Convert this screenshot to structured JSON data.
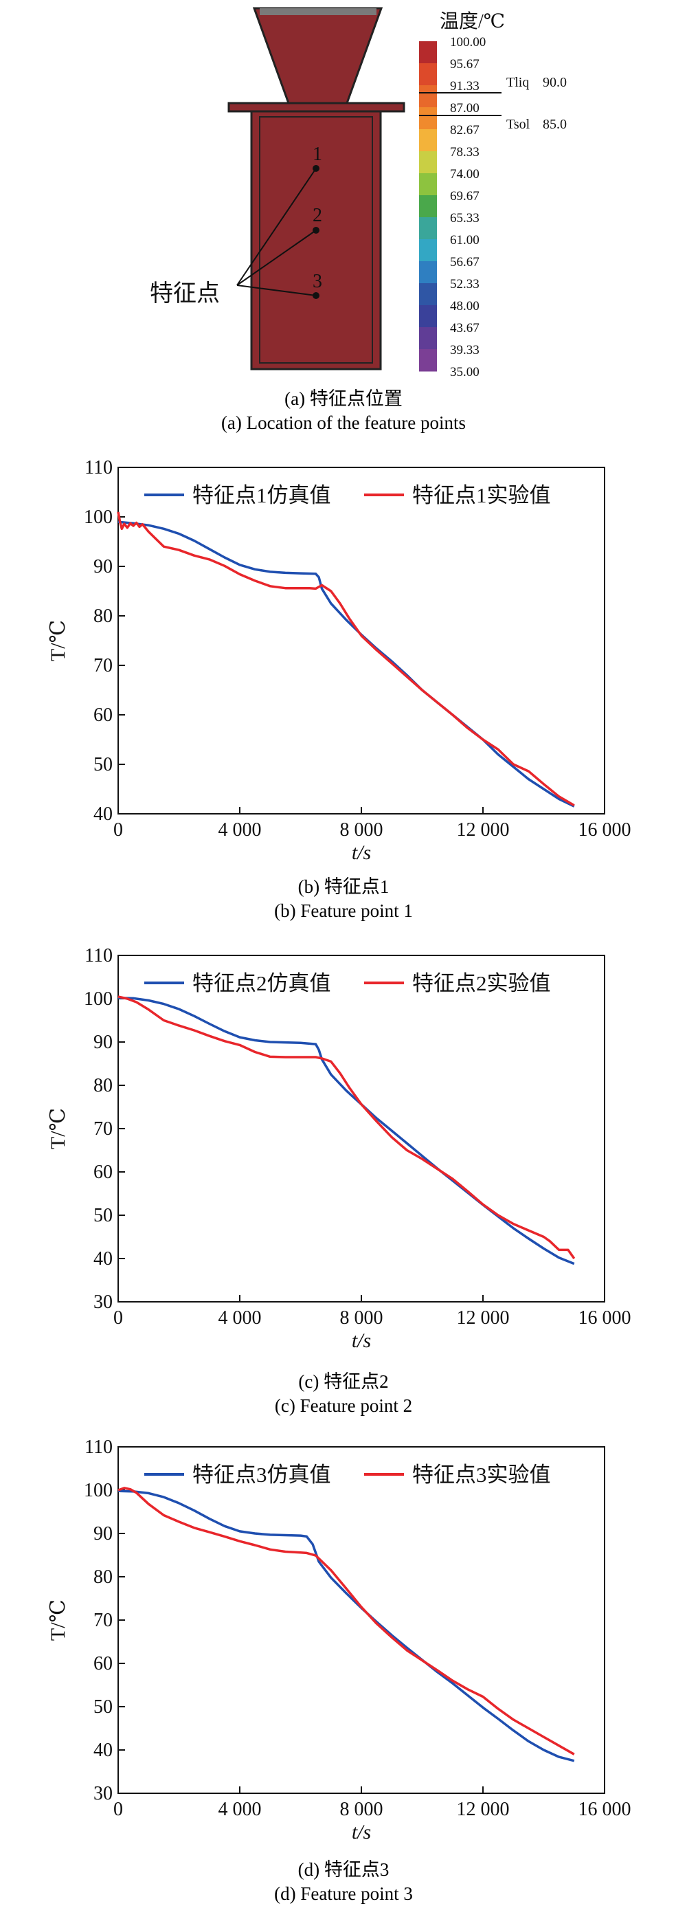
{
  "fig_a": {
    "colorbar_title": "温度/℃",
    "colorbar_ticks": [
      "100.00",
      "95.67",
      "91.33",
      "87.00",
      "82.67",
      "78.33",
      "74.00",
      "69.67",
      "65.33",
      "61.00",
      "56.67",
      "52.33",
      "48.00",
      "43.67",
      "39.33",
      "35.00"
    ],
    "colorbar_colors": [
      "#b52a2c",
      "#dd4a2a",
      "#e8692b",
      "#f08a2d",
      "#f3b33a",
      "#c9cf44",
      "#8dc33f",
      "#4aa84b",
      "#3aa69a",
      "#33a7c4",
      "#2f7fc1",
      "#2f56a5",
      "#3a419a",
      "#603d96",
      "#7b3f95"
    ],
    "tliq_label": "Tliq",
    "tliq_value": "90.0",
    "tsol_label": "Tsol",
    "tsol_value": "85.0",
    "feature_label": "特征点",
    "point_labels": [
      "1",
      "2",
      "3"
    ],
    "casting_color": "#8b2a2e",
    "caption_cn": "(a) 特征点位置",
    "caption_en": "(a) Location of the feature points"
  },
  "panels": [
    {
      "caption_cn": "(b) 特征点1",
      "caption_en": "(b) Feature point 1"
    },
    {
      "caption_cn": "(c) 特征点2",
      "caption_en": "(c) Feature point 2"
    },
    {
      "caption_cn": "(d) 特征点3",
      "caption_en": "(d) Feature point 3"
    }
  ],
  "chart_data": [
    {
      "type": "line",
      "xlabel": "t/s",
      "ylabel": "T/℃",
      "xlim": [
        0,
        16000
      ],
      "ylim": [
        40,
        110
      ],
      "xticks": [
        0,
        4000,
        8000,
        12000,
        16000
      ],
      "xtick_labels": [
        "0",
        "4 000",
        "8 000",
        "12 000",
        "16 000"
      ],
      "yticks": [
        40,
        50,
        60,
        70,
        80,
        90,
        100,
        110
      ],
      "legend_position": "top",
      "series": [
        {
          "name": "特征点1仿真值",
          "color": "#1f4fb0",
          "x": [
            0,
            500,
            1000,
            1500,
            2000,
            2500,
            3000,
            3500,
            4000,
            4500,
            5000,
            5500,
            6000,
            6500,
            6600,
            6700,
            7000,
            7500,
            8000,
            8500,
            9000,
            9500,
            10000,
            10500,
            11000,
            11500,
            12000,
            12500,
            13000,
            13500,
            14000,
            14500,
            15000
          ],
          "y": [
            99,
            98.7,
            98.3,
            97.6,
            96.6,
            95.2,
            93.5,
            91.8,
            90.3,
            89.4,
            88.9,
            88.7,
            88.6,
            88.5,
            87.8,
            85.5,
            82.5,
            79.2,
            76.2,
            73.4,
            70.8,
            68,
            65,
            62.5,
            60,
            57.5,
            55,
            52,
            49.5,
            47,
            45,
            43,
            41.5
          ]
        },
        {
          "name": "特征点1实验值",
          "color": "#e8262b",
          "x": [
            0,
            60,
            120,
            200,
            300,
            400,
            500,
            600,
            700,
            800,
            1000,
            1200,
            1500,
            2000,
            2500,
            3000,
            3500,
            4000,
            4500,
            5000,
            5500,
            6000,
            6300,
            6500,
            6700,
            7000,
            7300,
            7600,
            8000,
            8500,
            9000,
            9500,
            10000,
            10500,
            11000,
            11500,
            12000,
            12500,
            13000,
            13500,
            14000,
            14500,
            15000
          ],
          "y": [
            101,
            99,
            97.6,
            98.6,
            97.8,
            98.7,
            98.2,
            98.8,
            98,
            98.5,
            97,
            95.8,
            94,
            93.3,
            92.2,
            91.4,
            90.1,
            88.4,
            87.1,
            86,
            85.6,
            85.6,
            85.6,
            85.5,
            86.2,
            85,
            82.5,
            79.5,
            76,
            73.1,
            70.4,
            67.7,
            65,
            62.5,
            60,
            57.3,
            55,
            53,
            50,
            48.6,
            46,
            43.5,
            41.7
          ]
        }
      ]
    },
    {
      "type": "line",
      "xlabel": "t/s",
      "ylabel": "T/℃",
      "xlim": [
        0,
        16000
      ],
      "ylim": [
        30,
        110
      ],
      "xticks": [
        0,
        4000,
        8000,
        12000,
        16000
      ],
      "xtick_labels": [
        "0",
        "4 000",
        "8 000",
        "12 000",
        "16 000"
      ],
      "yticks": [
        30,
        40,
        50,
        60,
        70,
        80,
        90,
        100,
        110
      ],
      "legend_position": "top",
      "series": [
        {
          "name": "特征点2仿真值",
          "color": "#1f4fb0",
          "x": [
            0,
            500,
            1000,
            1500,
            2000,
            2500,
            3000,
            3500,
            4000,
            4500,
            5000,
            5500,
            6000,
            6500,
            6600,
            6700,
            7000,
            7500,
            8000,
            8500,
            9000,
            9500,
            10000,
            10500,
            11000,
            11500,
            12000,
            12500,
            13000,
            13500,
            14000,
            14500,
            15000
          ],
          "y": [
            100.2,
            100.1,
            99.6,
            98.8,
            97.6,
            96,
            94.2,
            92.5,
            91.1,
            90.4,
            90,
            89.9,
            89.8,
            89.5,
            88.2,
            86,
            82.5,
            78.8,
            75.6,
            72.4,
            69.5,
            66.6,
            63.7,
            60.8,
            58,
            55.2,
            52.4,
            49.7,
            47,
            44.6,
            42.3,
            40.2,
            38.8
          ]
        },
        {
          "name": "特征点2实验值",
          "color": "#e8262b",
          "x": [
            0,
            300,
            600,
            1000,
            1500,
            2000,
            2500,
            3000,
            3500,
            4000,
            4500,
            5000,
            5500,
            6000,
            6500,
            6700,
            7000,
            7300,
            7600,
            8000,
            8500,
            9000,
            9500,
            10000,
            10500,
            11000,
            11500,
            12000,
            12500,
            13000,
            13500,
            14000,
            14200,
            14500,
            14800,
            15000
          ],
          "y": [
            100.5,
            100,
            99.2,
            97.5,
            95,
            93.8,
            92.7,
            91.4,
            90.2,
            89.3,
            87.7,
            86.6,
            86.5,
            86.5,
            86.5,
            86.2,
            85.5,
            82.8,
            79.5,
            75.6,
            71.7,
            68,
            65,
            63,
            60.7,
            58.4,
            55.5,
            52.5,
            50,
            48,
            46.5,
            45,
            44,
            42,
            42,
            40
          ]
        }
      ]
    },
    {
      "type": "line",
      "xlabel": "t/s",
      "ylabel": "T/℃",
      "xlim": [
        0,
        16000
      ],
      "ylim": [
        30,
        110
      ],
      "xticks": [
        0,
        4000,
        8000,
        12000,
        16000
      ],
      "xtick_labels": [
        "0",
        "4 000",
        "8 000",
        "12 000",
        "16 000"
      ],
      "yticks": [
        30,
        40,
        50,
        60,
        70,
        80,
        90,
        100,
        110
      ],
      "legend_position": "top",
      "series": [
        {
          "name": "特征点3仿真值",
          "color": "#1f4fb0",
          "x": [
            0,
            500,
            1000,
            1500,
            2000,
            2500,
            3000,
            3500,
            4000,
            4500,
            5000,
            5500,
            6000,
            6200,
            6400,
            6600,
            7000,
            7500,
            8000,
            8500,
            9000,
            9500,
            10000,
            10500,
            11000,
            11500,
            12000,
            12500,
            13000,
            13500,
            14000,
            14500,
            15000
          ],
          "y": [
            99.8,
            99.7,
            99.3,
            98.4,
            97,
            95.3,
            93.4,
            91.7,
            90.5,
            90,
            89.7,
            89.6,
            89.5,
            89.3,
            87.5,
            83.5,
            79.8,
            76.2,
            72.8,
            69.6,
            66.5,
            63.6,
            60.8,
            58,
            55.4,
            52.6,
            49.8,
            47.2,
            44.5,
            42,
            40,
            38.4,
            37.5
          ]
        },
        {
          "name": "特征点3实验值",
          "color": "#e8262b",
          "x": [
            0,
            200,
            400,
            600,
            1000,
            1500,
            2000,
            2500,
            3000,
            3500,
            4000,
            4500,
            5000,
            5500,
            6000,
            6200,
            6500,
            7000,
            7500,
            8000,
            8500,
            9000,
            9500,
            10000,
            10500,
            11000,
            11500,
            12000,
            12500,
            13000,
            13500,
            14000,
            14500,
            15000
          ],
          "y": [
            100,
            100.5,
            100.2,
            99.4,
            96.8,
            94.2,
            92.7,
            91.3,
            90.3,
            89.3,
            88.2,
            87.3,
            86.3,
            85.8,
            85.6,
            85.5,
            84.9,
            81.5,
            77.3,
            73,
            69.2,
            66,
            63,
            60.7,
            58.4,
            56,
            54,
            52.3,
            49.5,
            47,
            45,
            43,
            41,
            39
          ]
        }
      ]
    }
  ]
}
